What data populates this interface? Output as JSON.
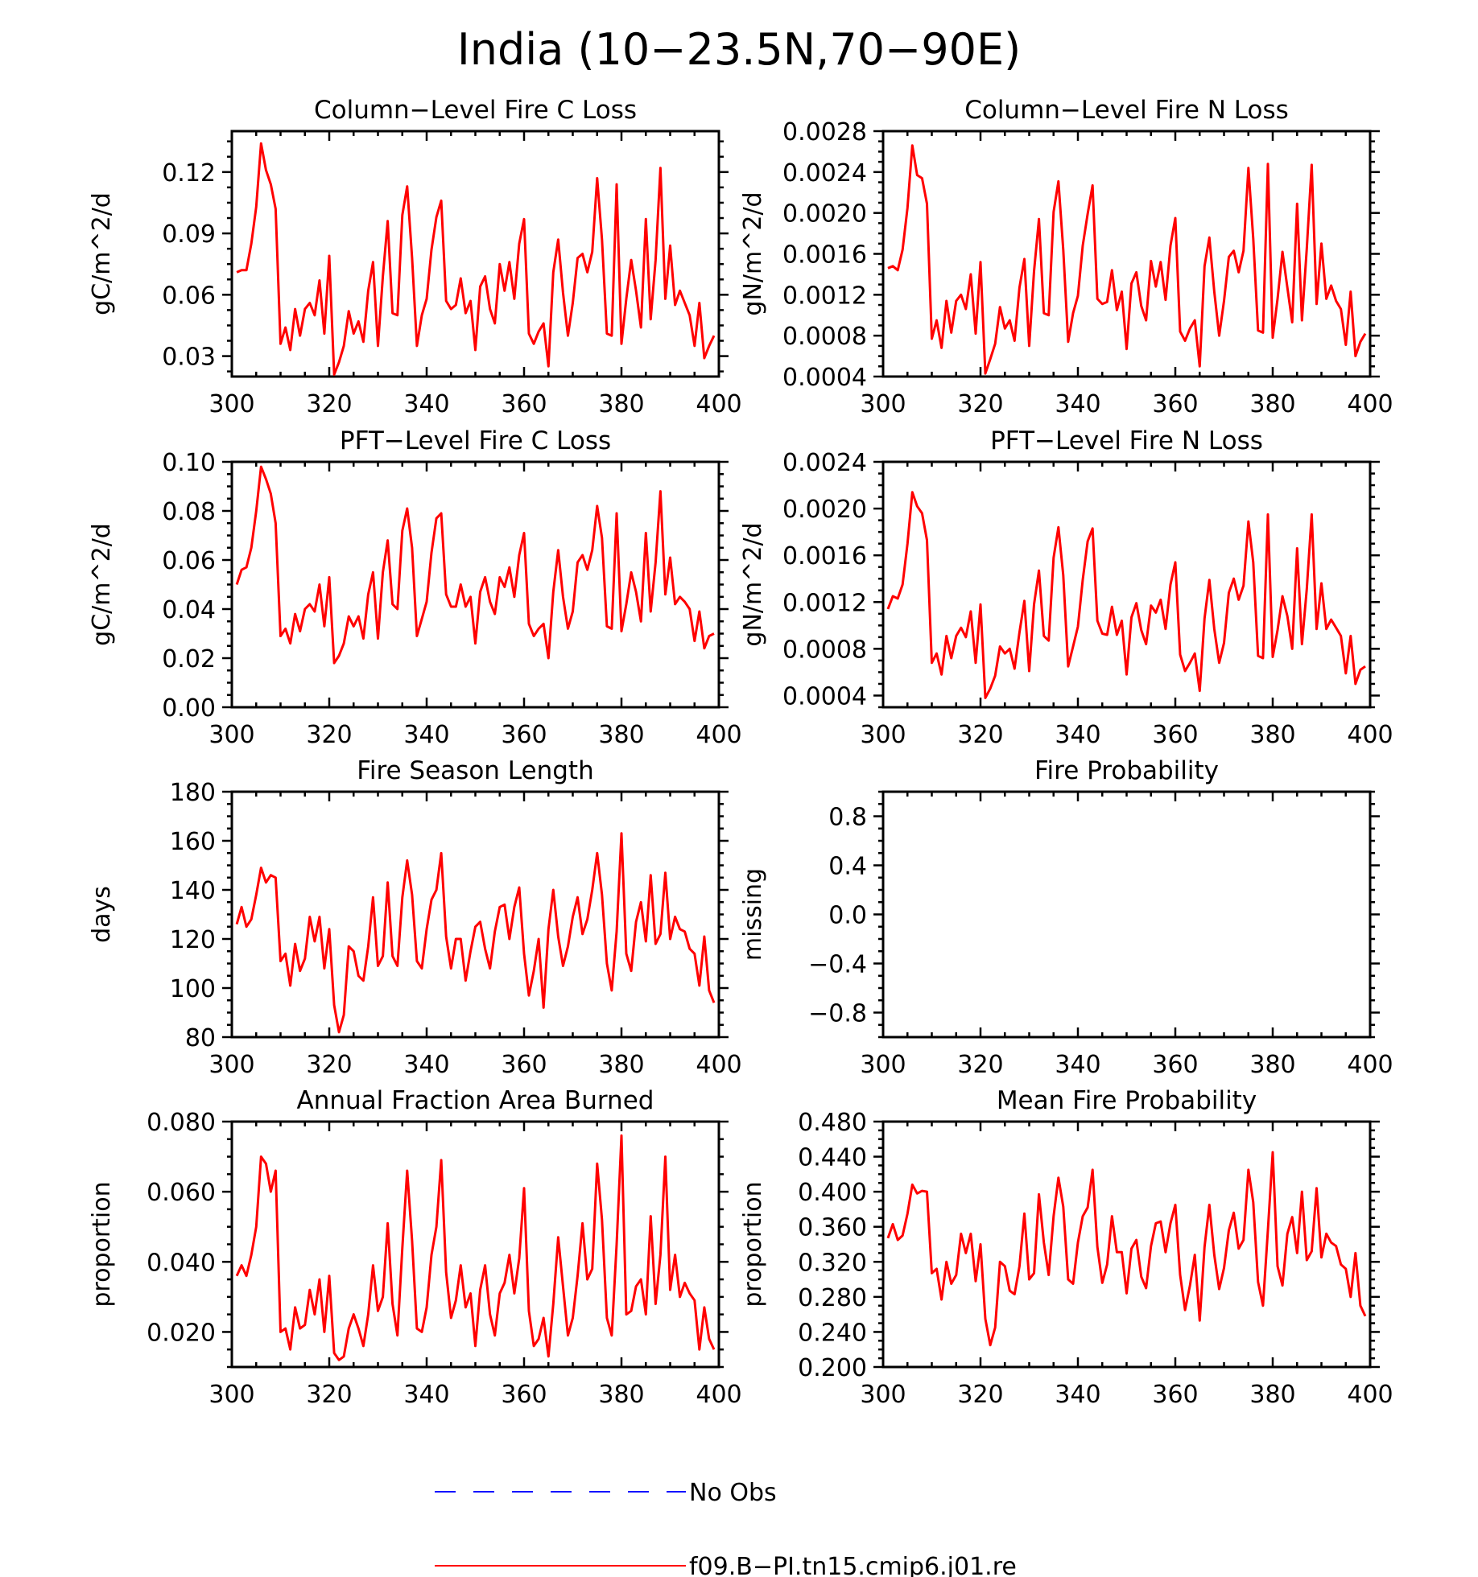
{
  "title": "India (10−23.5N,70−90E)",
  "colors": {
    "model": "#ff0000",
    "obs": "#0000ff"
  },
  "legend": {
    "obs_label": "No Obs",
    "model_label": "f09.B−PI.tn15.cmip6.j01.re"
  },
  "chart_data": [
    {
      "type": "line",
      "title": "Column−Level Fire C Loss",
      "ylabel": "gC/m^2/d",
      "xlim": [
        300,
        400
      ],
      "ylim": [
        0.02,
        0.14
      ],
      "xticks": [
        300,
        320,
        340,
        360,
        380,
        400
      ],
      "xtick_labels": [
        "300",
        "320",
        "340",
        "360",
        "380",
        "400"
      ],
      "yticks": [
        0.03,
        0.06,
        0.09,
        0.12
      ],
      "ytick_labels": [
        "0.03",
        "0.06",
        "0.09",
        "0.12"
      ],
      "series": [
        {
          "x_start": 301,
          "values": [
            0.071,
            0.072,
            0.072,
            0.085,
            0.103,
            0.134,
            0.121,
            0.114,
            0.102,
            0.036,
            0.044,
            0.033,
            0.053,
            0.04,
            0.053,
            0.056,
            0.05,
            0.067,
            0.041,
            0.079,
            0.021,
            0.027,
            0.035,
            0.052,
            0.041,
            0.047,
            0.037,
            0.062,
            0.076,
            0.035,
            0.069,
            0.096,
            0.051,
            0.05,
            0.099,
            0.113,
            0.078,
            0.035,
            0.05,
            0.058,
            0.082,
            0.098,
            0.106,
            0.057,
            0.053,
            0.055,
            0.068,
            0.051,
            0.057,
            0.033,
            0.064,
            0.069,
            0.053,
            0.046,
            0.075,
            0.062,
            0.076,
            0.058,
            0.085,
            0.097,
            0.041,
            0.036,
            0.042,
            0.046,
            0.025,
            0.071,
            0.087,
            0.061,
            0.04,
            0.056,
            0.078,
            0.08,
            0.071,
            0.081,
            0.117,
            0.087,
            0.041,
            0.04,
            0.114,
            0.036,
            0.058,
            0.077,
            0.062,
            0.044,
            0.097,
            0.048,
            0.077,
            0.122,
            0.058,
            0.084,
            0.055,
            0.062,
            0.056,
            0.05,
            0.035,
            0.056,
            0.029,
            0.035,
            0.04
          ]
        }
      ]
    },
    {
      "type": "line",
      "title": "Column−Level Fire N Loss",
      "ylabel": "gN/m^2/d",
      "xlim": [
        300,
        400
      ],
      "ylim": [
        0.0004,
        0.0028
      ],
      "xticks": [
        300,
        320,
        340,
        360,
        380,
        400
      ],
      "xtick_labels": [
        "300",
        "320",
        "340",
        "360",
        "380",
        "400"
      ],
      "yticks": [
        0.0004,
        0.0008,
        0.0012,
        0.0016,
        0.002,
        0.0024,
        0.0028
      ],
      "ytick_labels": [
        "0.0004",
        "0.0008",
        "0.0012",
        "0.0016",
        "0.0020",
        "0.0024",
        "0.0028"
      ],
      "series": [
        {
          "x_start": 301,
          "values": [
            0.00146,
            0.00148,
            0.00144,
            0.00164,
            0.00205,
            0.00266,
            0.00237,
            0.00234,
            0.00209,
            0.00077,
            0.00095,
            0.00068,
            0.00114,
            0.00083,
            0.00114,
            0.0012,
            0.00106,
            0.0014,
            0.00082,
            0.00152,
            0.00043,
            0.00057,
            0.00072,
            0.00108,
            0.00087,
            0.00095,
            0.00075,
            0.00127,
            0.00155,
            0.0007,
            0.00143,
            0.00194,
            0.00102,
            0.001,
            0.00201,
            0.00231,
            0.00164,
            0.00074,
            0.00102,
            0.00119,
            0.00168,
            0.00199,
            0.00227,
            0.00116,
            0.00111,
            0.00113,
            0.00144,
            0.00105,
            0.00123,
            0.00067,
            0.00131,
            0.00142,
            0.00109,
            0.00095,
            0.00153,
            0.00128,
            0.00152,
            0.00115,
            0.00168,
            0.00195,
            0.00084,
            0.00075,
            0.00087,
            0.00095,
            0.0005,
            0.00148,
            0.00176,
            0.00123,
            0.0008,
            0.00114,
            0.00157,
            0.00163,
            0.00142,
            0.00163,
            0.00244,
            0.00175,
            0.00085,
            0.00083,
            0.00248,
            0.00078,
            0.00116,
            0.00162,
            0.00127,
            0.00093,
            0.00209,
            0.00095,
            0.00165,
            0.00247,
            0.00111,
            0.0017,
            0.00116,
            0.00129,
            0.00114,
            0.00106,
            0.00071,
            0.00123,
            0.0006,
            0.00074,
            0.00082
          ]
        }
      ]
    },
    {
      "type": "line",
      "title": "PFT−Level Fire C Loss",
      "ylabel": "gC/m^2/d",
      "xlim": [
        300,
        400
      ],
      "ylim": [
        0.0,
        0.1
      ],
      "xticks": [
        300,
        320,
        340,
        360,
        380,
        400
      ],
      "xtick_labels": [
        "300",
        "320",
        "340",
        "360",
        "380",
        "400"
      ],
      "yticks": [
        0.0,
        0.02,
        0.04,
        0.06,
        0.08,
        0.1
      ],
      "ytick_labels": [
        "0.00",
        "0.02",
        "0.04",
        "0.06",
        "0.08",
        "0.10"
      ],
      "series": [
        {
          "x_start": 301,
          "values": [
            0.05,
            0.056,
            0.057,
            0.065,
            0.08,
            0.098,
            0.093,
            0.087,
            0.075,
            0.029,
            0.032,
            0.026,
            0.038,
            0.031,
            0.04,
            0.042,
            0.039,
            0.05,
            0.033,
            0.053,
            0.018,
            0.021,
            0.026,
            0.037,
            0.033,
            0.037,
            0.028,
            0.046,
            0.055,
            0.028,
            0.055,
            0.068,
            0.042,
            0.04,
            0.072,
            0.081,
            0.065,
            0.029,
            0.036,
            0.043,
            0.063,
            0.077,
            0.079,
            0.046,
            0.041,
            0.041,
            0.05,
            0.041,
            0.045,
            0.026,
            0.047,
            0.053,
            0.043,
            0.038,
            0.053,
            0.049,
            0.057,
            0.045,
            0.062,
            0.071,
            0.034,
            0.029,
            0.032,
            0.034,
            0.02,
            0.047,
            0.064,
            0.045,
            0.032,
            0.039,
            0.059,
            0.062,
            0.056,
            0.064,
            0.082,
            0.069,
            0.033,
            0.032,
            0.079,
            0.031,
            0.042,
            0.055,
            0.047,
            0.035,
            0.071,
            0.039,
            0.059,
            0.088,
            0.046,
            0.061,
            0.042,
            0.045,
            0.043,
            0.04,
            0.027,
            0.039,
            0.024,
            0.029,
            0.03
          ]
        }
      ]
    },
    {
      "type": "line",
      "title": "PFT−Level Fire N Loss",
      "ylabel": "gN/m^2/d",
      "xlim": [
        300,
        400
      ],
      "ylim": [
        0.0003,
        0.0024
      ],
      "xticks": [
        300,
        320,
        340,
        360,
        380,
        400
      ],
      "xtick_labels": [
        "300",
        "320",
        "340",
        "360",
        "380",
        "400"
      ],
      "yticks": [
        0.0004,
        0.0008,
        0.0012,
        0.0016,
        0.002,
        0.0024
      ],
      "ytick_labels": [
        "0.0004",
        "0.0008",
        "0.0012",
        "0.0016",
        "0.0020",
        "0.0024"
      ],
      "series": [
        {
          "x_start": 301,
          "values": [
            0.00114,
            0.00125,
            0.00123,
            0.00135,
            0.0017,
            0.00214,
            0.00202,
            0.00196,
            0.00173,
            0.00068,
            0.00076,
            0.00058,
            0.00091,
            0.00072,
            0.00091,
            0.00098,
            0.0009,
            0.00112,
            0.00068,
            0.00118,
            0.00038,
            0.00046,
            0.00057,
            0.00082,
            0.00076,
            0.0008,
            0.00063,
            0.00094,
            0.00121,
            0.00061,
            0.00118,
            0.00147,
            0.00091,
            0.00087,
            0.00158,
            0.00184,
            0.00143,
            0.00065,
            0.00082,
            0.00099,
            0.00139,
            0.00172,
            0.00183,
            0.00104,
            0.00093,
            0.00092,
            0.00116,
            0.00092,
            0.00104,
            0.00058,
            0.00107,
            0.00119,
            0.00096,
            0.00084,
            0.00117,
            0.00111,
            0.00122,
            0.00097,
            0.00135,
            0.00154,
            0.00075,
            0.00061,
            0.00068,
            0.00076,
            0.00044,
            0.00106,
            0.00139,
            0.00097,
            0.00068,
            0.00085,
            0.00128,
            0.0014,
            0.00122,
            0.00134,
            0.00189,
            0.00154,
            0.00074,
            0.00072,
            0.00195,
            0.00073,
            0.00096,
            0.00125,
            0.00108,
            0.0008,
            0.00166,
            0.00084,
            0.00131,
            0.00195,
            0.00097,
            0.00136,
            0.00097,
            0.00105,
            0.00098,
            0.00091,
            0.00059,
            0.00091,
            0.0005,
            0.00062,
            0.00065
          ]
        }
      ]
    },
    {
      "type": "line",
      "title": "Fire Season Length",
      "ylabel": "days",
      "xlim": [
        300,
        400
      ],
      "ylim": [
        80,
        180
      ],
      "xticks": [
        300,
        320,
        340,
        360,
        380,
        400
      ],
      "xtick_labels": [
        "300",
        "320",
        "340",
        "360",
        "380",
        "400"
      ],
      "yticks": [
        80,
        100,
        120,
        140,
        160,
        180
      ],
      "ytick_labels": [
        "80",
        "100",
        "120",
        "140",
        "160",
        "180"
      ],
      "series": [
        {
          "x_start": 301,
          "values": [
            126,
            133,
            125,
            128,
            138,
            149,
            143,
            146,
            145,
            111,
            114,
            101,
            118,
            107,
            112,
            129,
            119,
            129,
            108,
            124,
            93,
            82,
            89,
            117,
            115,
            105,
            103,
            117,
            137,
            109,
            113,
            143,
            113,
            109,
            137,
            152,
            138,
            111,
            108,
            124,
            136,
            140,
            155,
            121,
            108,
            120,
            120,
            103,
            115,
            125,
            127,
            116,
            108,
            123,
            133,
            134,
            120,
            133,
            141,
            114,
            97,
            107,
            120,
            92,
            124,
            140,
            121,
            109,
            117,
            129,
            137,
            122,
            128,
            140,
            155,
            138,
            110,
            99,
            123,
            163,
            114,
            107,
            127,
            135,
            119,
            146,
            118,
            122,
            147,
            120,
            129,
            124,
            123,
            116,
            114,
            101,
            121,
            99,
            94
          ]
        }
      ]
    },
    {
      "type": "line",
      "title": "Fire Probability",
      "ylabel": "missing",
      "xlim": [
        300,
        400
      ],
      "ylim": [
        -1.0,
        1.0
      ],
      "xticks": [
        300,
        320,
        340,
        360,
        380,
        400
      ],
      "xtick_labels": [
        "300",
        "320",
        "340",
        "360",
        "380",
        "400"
      ],
      "yticks": [
        -0.8,
        -0.4,
        0.0,
        0.4,
        0.8
      ],
      "ytick_labels": [
        "−0.8",
        "−0.4",
        "0.0",
        "0.4",
        "0.8"
      ],
      "series": []
    },
    {
      "type": "line",
      "title": "Annual Fraction Area Burned",
      "ylabel": "proportion",
      "xlim": [
        300,
        400
      ],
      "ylim": [
        0.01,
        0.08
      ],
      "xticks": [
        300,
        320,
        340,
        360,
        380,
        400
      ],
      "xtick_labels": [
        "300",
        "320",
        "340",
        "360",
        "380",
        "400"
      ],
      "yticks": [
        0.02,
        0.04,
        0.06,
        0.08
      ],
      "ytick_labels": [
        "0.020",
        "0.040",
        "0.060",
        "0.080"
      ],
      "series": [
        {
          "x_start": 301,
          "values": [
            0.036,
            0.039,
            0.036,
            0.042,
            0.05,
            0.07,
            0.068,
            0.06,
            0.066,
            0.02,
            0.021,
            0.015,
            0.027,
            0.021,
            0.022,
            0.032,
            0.025,
            0.035,
            0.02,
            0.036,
            0.014,
            0.012,
            0.013,
            0.021,
            0.025,
            0.021,
            0.016,
            0.025,
            0.039,
            0.026,
            0.03,
            0.051,
            0.028,
            0.019,
            0.044,
            0.066,
            0.046,
            0.021,
            0.02,
            0.027,
            0.042,
            0.05,
            0.069,
            0.037,
            0.024,
            0.029,
            0.039,
            0.027,
            0.031,
            0.016,
            0.032,
            0.039,
            0.025,
            0.019,
            0.031,
            0.034,
            0.042,
            0.031,
            0.041,
            0.061,
            0.026,
            0.016,
            0.018,
            0.024,
            0.013,
            0.028,
            0.047,
            0.033,
            0.019,
            0.024,
            0.036,
            0.051,
            0.035,
            0.038,
            0.068,
            0.052,
            0.024,
            0.019,
            0.045,
            0.076,
            0.025,
            0.026,
            0.033,
            0.035,
            0.025,
            0.053,
            0.028,
            0.042,
            0.07,
            0.032,
            0.042,
            0.03,
            0.034,
            0.031,
            0.029,
            0.015,
            0.027,
            0.018,
            0.015
          ]
        }
      ]
    },
    {
      "type": "line",
      "title": "Mean Fire Probability",
      "ylabel": "proportion",
      "xlim": [
        300,
        400
      ],
      "ylim": [
        0.2,
        0.48
      ],
      "xticks": [
        300,
        320,
        340,
        360,
        380,
        400
      ],
      "xtick_labels": [
        "300",
        "320",
        "340",
        "360",
        "380",
        "400"
      ],
      "yticks": [
        0.2,
        0.24,
        0.28,
        0.32,
        0.36,
        0.4,
        0.44,
        0.48
      ],
      "ytick_labels": [
        "0.200",
        "0.240",
        "0.280",
        "0.320",
        "0.360",
        "0.400",
        "0.440",
        "0.480"
      ],
      "series": [
        {
          "x_start": 301,
          "values": [
            0.347,
            0.363,
            0.345,
            0.35,
            0.375,
            0.408,
            0.398,
            0.401,
            0.4,
            0.307,
            0.312,
            0.277,
            0.32,
            0.295,
            0.305,
            0.352,
            0.33,
            0.352,
            0.298,
            0.34,
            0.255,
            0.225,
            0.245,
            0.32,
            0.315,
            0.287,
            0.283,
            0.315,
            0.375,
            0.3,
            0.307,
            0.397,
            0.342,
            0.305,
            0.372,
            0.416,
            0.383,
            0.3,
            0.295,
            0.342,
            0.372,
            0.382,
            0.425,
            0.337,
            0.296,
            0.317,
            0.372,
            0.331,
            0.331,
            0.284,
            0.335,
            0.345,
            0.303,
            0.29,
            0.338,
            0.364,
            0.366,
            0.331,
            0.364,
            0.385,
            0.305,
            0.265,
            0.293,
            0.328,
            0.253,
            0.337,
            0.385,
            0.328,
            0.289,
            0.313,
            0.356,
            0.376,
            0.335,
            0.345,
            0.425,
            0.388,
            0.297,
            0.27,
            0.356,
            0.445,
            0.315,
            0.293,
            0.352,
            0.371,
            0.33,
            0.4,
            0.322,
            0.332,
            0.404,
            0.325,
            0.352,
            0.342,
            0.338,
            0.317,
            0.312,
            0.28,
            0.33,
            0.27,
            0.258
          ]
        }
      ]
    }
  ]
}
